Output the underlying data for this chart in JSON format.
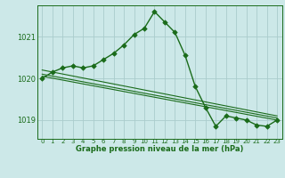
{
  "title": "Graphe pression niveau de la mer (hPa)",
  "background_color": "#cce8e8",
  "grid_color": "#aacccc",
  "line_color": "#1a6b1a",
  "marker_color": "#1a6b1a",
  "xlim": [
    -0.5,
    23.5
  ],
  "ylim": [
    1018.55,
    1021.75
  ],
  "yticks": [
    1019,
    1020,
    1021
  ],
  "xticks": [
    0,
    1,
    2,
    3,
    4,
    5,
    6,
    7,
    8,
    9,
    10,
    11,
    12,
    13,
    14,
    15,
    16,
    17,
    18,
    19,
    20,
    21,
    22,
    23
  ],
  "series": [
    {
      "x": [
        0,
        1,
        2,
        3,
        4,
        5,
        6,
        7,
        8,
        9,
        10,
        11,
        12,
        13,
        14,
        15,
        16,
        17,
        18,
        19,
        20,
        21,
        22,
        23
      ],
      "y": [
        1020.0,
        1020.15,
        1020.25,
        1020.3,
        1020.25,
        1020.3,
        1020.45,
        1020.6,
        1020.8,
        1021.05,
        1021.2,
        1021.6,
        1021.35,
        1021.1,
        1020.55,
        1019.8,
        1019.3,
        1018.85,
        1019.1,
        1019.05,
        1019.0,
        1018.88,
        1018.85,
        1019.0
      ],
      "marker": "D",
      "markersize": 2.8,
      "linewidth": 1.0
    },
    {
      "x": [
        0,
        23
      ],
      "y": [
        1020.05,
        1019.0
      ],
      "marker": null,
      "linewidth": 0.8
    },
    {
      "x": [
        0,
        23
      ],
      "y": [
        1020.1,
        1019.05
      ],
      "marker": null,
      "linewidth": 0.8
    },
    {
      "x": [
        0,
        23
      ],
      "y": [
        1020.2,
        1019.1
      ],
      "marker": null,
      "linewidth": 0.8
    }
  ]
}
